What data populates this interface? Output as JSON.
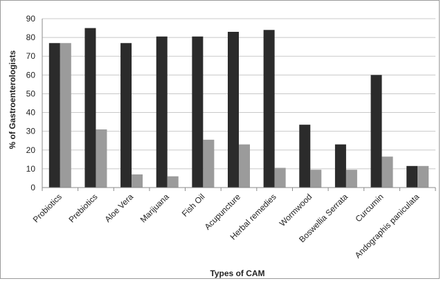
{
  "chart_data": {
    "type": "bar",
    "xlabel": "Types of CAM",
    "ylabel": "% of Gastroenterologists",
    "ylim": [
      0,
      90
    ],
    "yticks": [
      0,
      10,
      20,
      30,
      40,
      50,
      60,
      70,
      80,
      90
    ],
    "grid": true,
    "legend": "none",
    "categories": [
      "Probiotics",
      "Prebiotics",
      "Aloe Vera",
      "Marijuana",
      "Fish Oil",
      "Acupuncture",
      "Herbal remedies",
      "Wormwood",
      "Boswellia Serrata",
      "Curcumin",
      "Andographis paniculata"
    ],
    "series": [
      {
        "values": [
          77,
          85,
          77,
          80.5,
          80.5,
          83,
          84,
          33.5,
          23,
          60,
          11.5
        ]
      },
      {
        "values": [
          77,
          31,
          7,
          6,
          25.5,
          23,
          10.5,
          9.5,
          9.5,
          16.5,
          11.5
        ]
      }
    ],
    "colors": [
      "#2b2b2b",
      "#9b9b9b"
    ]
  }
}
